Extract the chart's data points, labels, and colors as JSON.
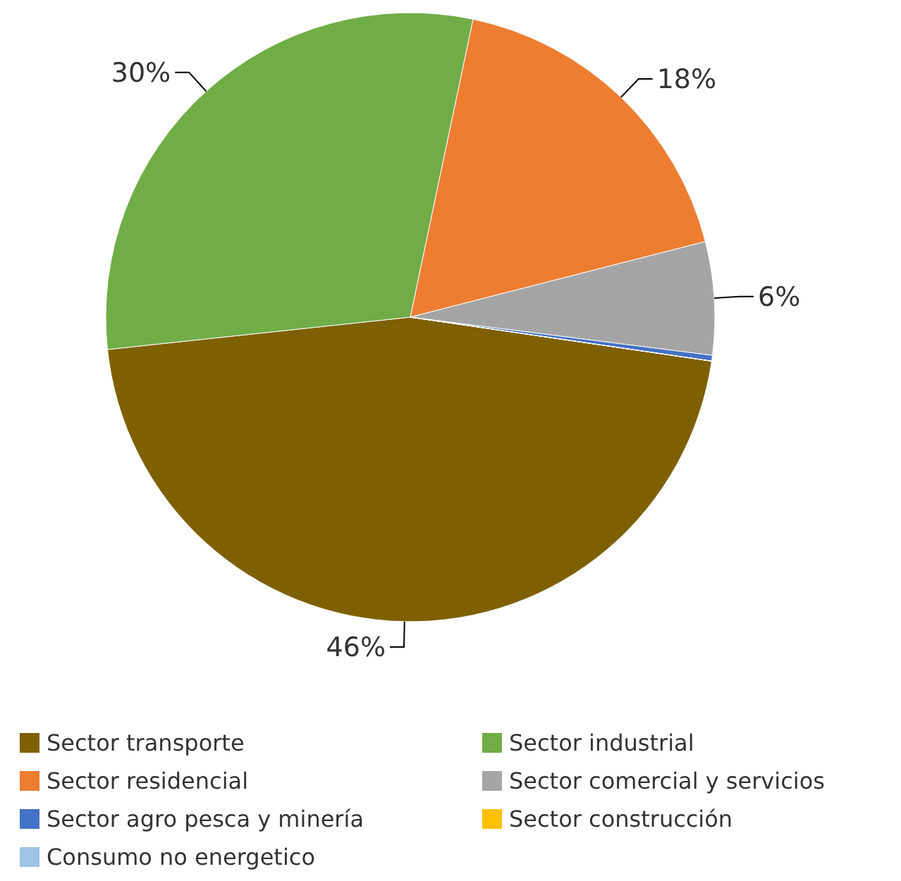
{
  "chart_data": {
    "type": "pie",
    "categories": [
      "Sector transporte",
      "Sector industrial",
      "Sector residencial",
      "Sector comercial y servicios",
      "Sector agro pesca y minería",
      "Sector construcción",
      "Consumo no energetico"
    ],
    "values": [
      46,
      30,
      17.7,
      6,
      0.3,
      0,
      0
    ],
    "value_labels": [
      "46%",
      "30%",
      "18%",
      "6%",
      null,
      null,
      null
    ],
    "colors": [
      "#7f6000",
      "#70ad47",
      "#ed7d31",
      "#a5a5a5",
      "#4472c4",
      "#ffc000",
      "#9dc3e6"
    ],
    "legend": "bottom"
  }
}
